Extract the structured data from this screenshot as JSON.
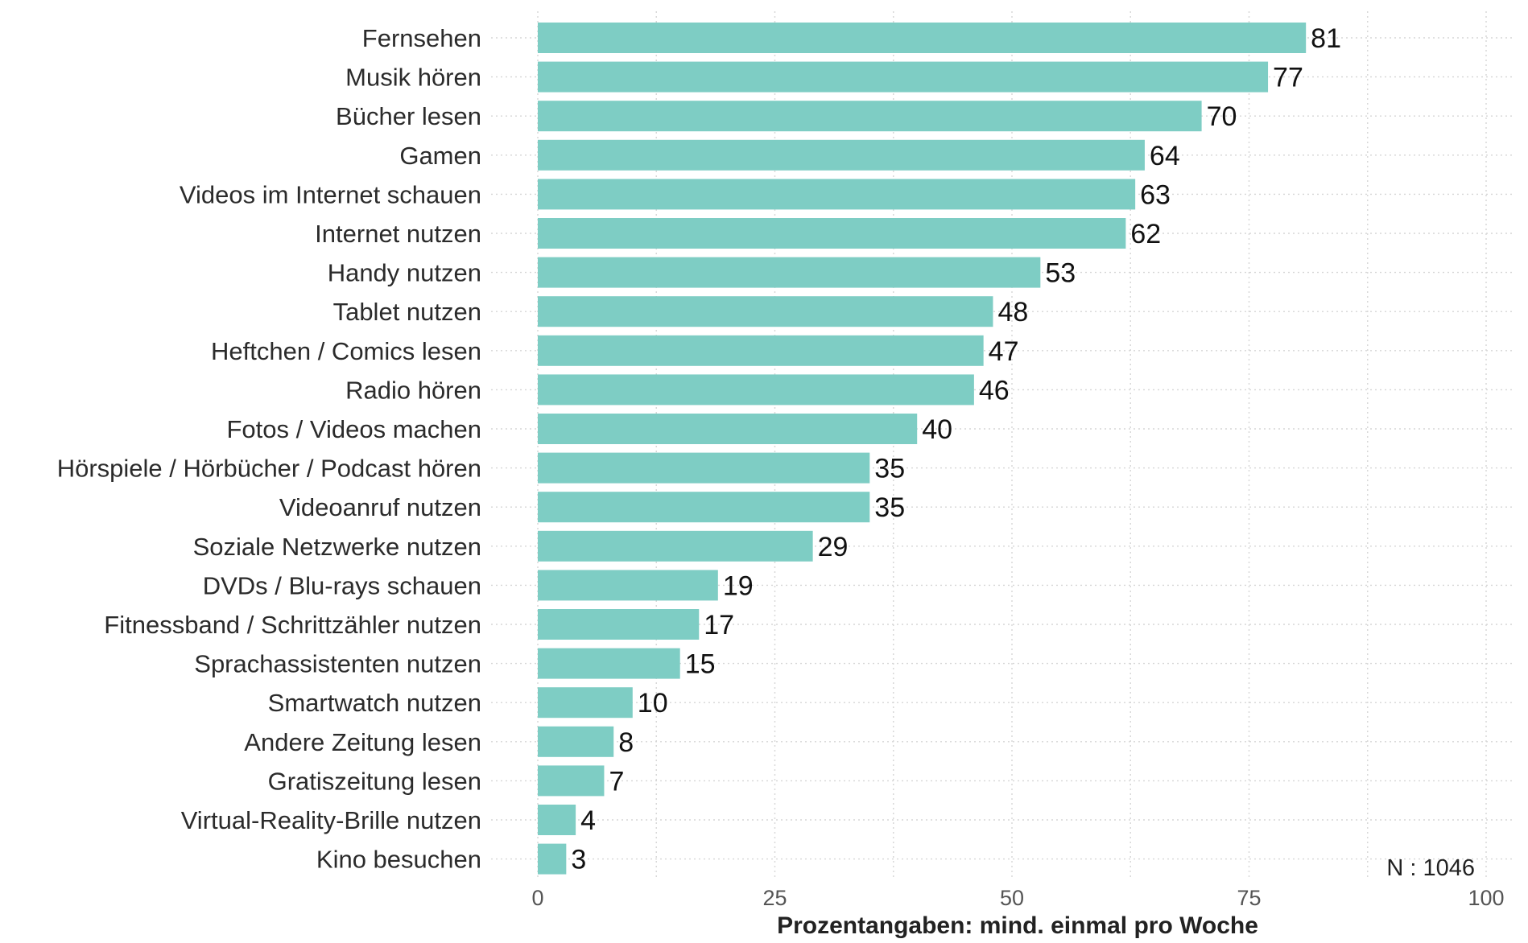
{
  "chart_data": {
    "type": "bar",
    "orientation": "horizontal",
    "categories": [
      "Fernsehen",
      "Musik hören",
      "Bücher lesen",
      "Gamen",
      "Videos im Internet schauen",
      "Internet nutzen",
      "Handy nutzen",
      "Tablet nutzen",
      "Heftchen / Comics lesen",
      "Radio hören",
      "Fotos / Videos machen",
      "Hörspiele / Hörbücher / Podcast hören",
      "Videoanruf nutzen",
      "Soziale Netzwerke nutzen",
      "DVDs / Blu-rays schauen",
      "Fitnessband / Schrittzähler nutzen",
      "Sprachassistenten nutzen",
      "Smartwatch nutzen",
      "Andere Zeitung lesen",
      "Gratiszeitung lesen",
      "Virtual-Reality-Brille nutzen",
      "Kino besuchen"
    ],
    "values": [
      81,
      77,
      70,
      64,
      63,
      62,
      53,
      48,
      47,
      46,
      40,
      35,
      35,
      29,
      19,
      17,
      15,
      10,
      8,
      7,
      4,
      3
    ],
    "xlabel": "Prozentangaben: mind. einmal pro Woche",
    "xlim": [
      0,
      100
    ],
    "xticks": [
      0,
      25,
      50,
      75,
      100
    ],
    "grid": true,
    "note": "N : 1046",
    "bar_color": "#7ecdc4"
  }
}
